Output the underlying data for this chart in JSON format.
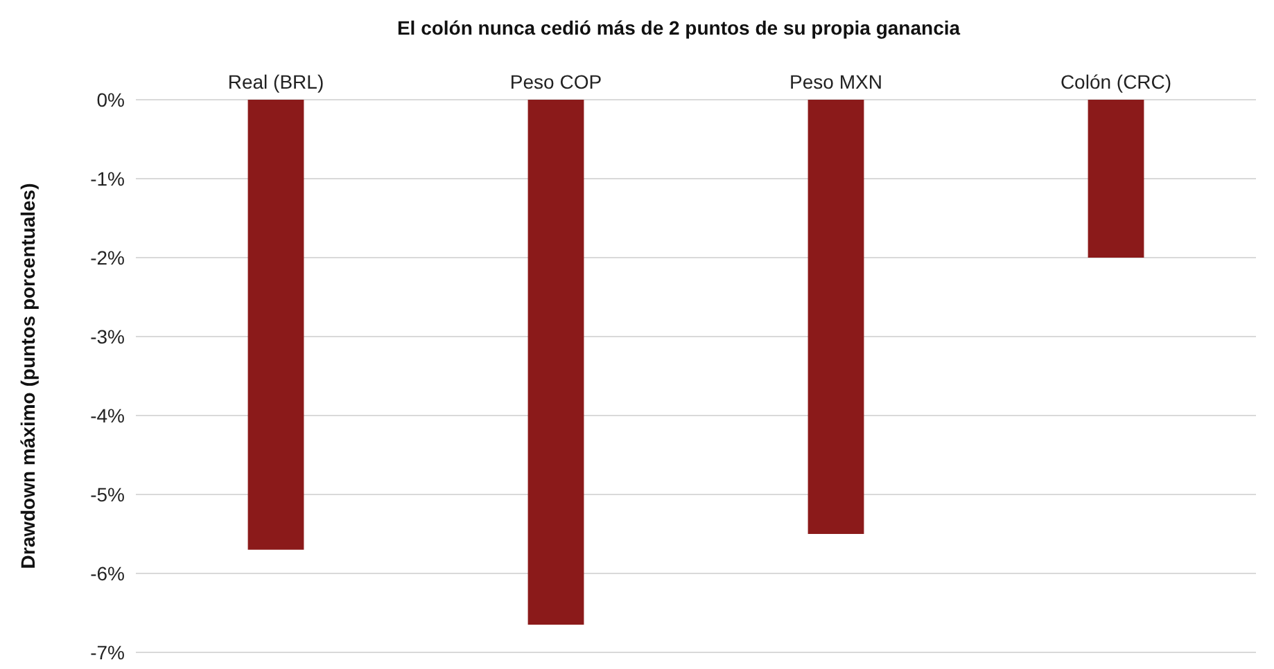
{
  "chart_data": {
    "type": "bar",
    "title": "El colón nunca cedió más de 2 puntos de su propia ganancia",
    "ylabel": "Drawdown máximo (puntos porcentuales)",
    "categories": [
      "Real (BRL)",
      "Peso COP",
      "Peso MXN",
      "Colón (CRC)"
    ],
    "values": [
      -5.7,
      -6.65,
      -5.5,
      -2.0
    ],
    "color": "#8b1a1a",
    "ylim": [
      -7,
      0
    ],
    "yticks": [
      {
        "value": 0,
        "label": "0%"
      },
      {
        "value": -1,
        "label": "-1%"
      },
      {
        "value": -2,
        "label": "-2%"
      },
      {
        "value": -3,
        "label": "-3%"
      },
      {
        "value": -4,
        "label": "-4%"
      },
      {
        "value": -5,
        "label": "-5%"
      },
      {
        "value": -6,
        "label": "-6%"
      },
      {
        "value": -7,
        "label": "-7%"
      }
    ],
    "grid": "y",
    "legend": false
  }
}
